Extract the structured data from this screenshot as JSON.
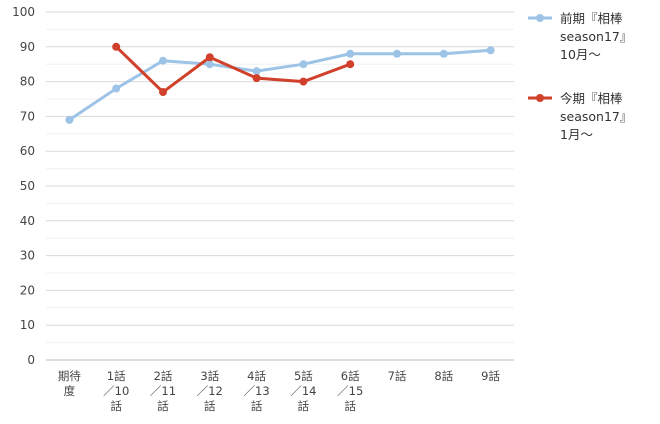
{
  "chart_data": {
    "type": "line",
    "title": "",
    "xlabel": "",
    "ylabel": "",
    "ylim": [
      0,
      100
    ],
    "yticks": [
      "0",
      "10",
      "20",
      "30",
      "40",
      "50",
      "60",
      "70",
      "80",
      "90",
      "100"
    ],
    "grid": true,
    "legend": "right",
    "categories": [
      [
        "期待",
        "度"
      ],
      [
        "1話",
        "／10",
        "話"
      ],
      [
        "2話",
        "／11",
        "話"
      ],
      [
        "3話",
        "／12",
        "話"
      ],
      [
        "4話",
        "／13",
        "話"
      ],
      [
        "5話",
        "／14",
        "話"
      ],
      [
        "6話",
        "／15",
        "話"
      ],
      [
        "7話"
      ],
      [
        "8話"
      ],
      [
        "9話"
      ]
    ],
    "series": [
      {
        "name_lines": [
          "前期『相棒",
          "season17』",
          "10月～"
        ],
        "color": "#9dc3e6",
        "values": [
          69,
          78,
          86,
          85,
          83,
          85,
          88,
          88,
          88,
          89
        ]
      },
      {
        "name_lines": [
          "今期『相棒",
          "season17』",
          "1月～"
        ],
        "color": "#d0402b",
        "values": [
          null,
          90,
          77,
          87,
          81,
          80,
          85,
          null,
          null,
          null
        ]
      }
    ]
  }
}
